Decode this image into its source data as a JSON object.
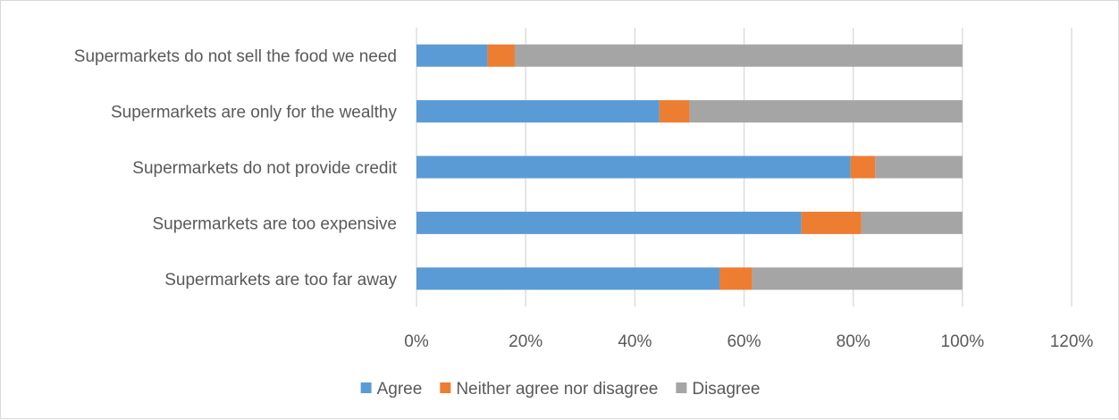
{
  "chart_data": {
    "type": "bar",
    "orientation": "horizontal",
    "stacked": true,
    "categories": [
      "Supermarkets do not sell the food we need",
      "Supermarkets are only for the wealthy",
      "Supermarkets do not provide credit",
      "Supermarkets are too expensive",
      "Supermarkets are too far away"
    ],
    "series": [
      {
        "name": "Agree",
        "color": "#5b9bd5",
        "values": [
          13,
          44.5,
          79.5,
          70.5,
          55.5
        ]
      },
      {
        "name": "Neither agree nor disagree",
        "color": "#ed7d31",
        "values": [
          5,
          5.5,
          4.5,
          11,
          6
        ]
      },
      {
        "name": "Disagree",
        "color": "#a5a5a5",
        "values": [
          82,
          50,
          16,
          18.5,
          38.5
        ]
      }
    ],
    "x_ticks": [
      "0%",
      "20%",
      "40%",
      "60%",
      "80%",
      "100%",
      "120%"
    ],
    "xlim": [
      0,
      120
    ],
    "grid": true,
    "legend": "bottom",
    "title": "",
    "xlabel": "",
    "ylabel": ""
  }
}
